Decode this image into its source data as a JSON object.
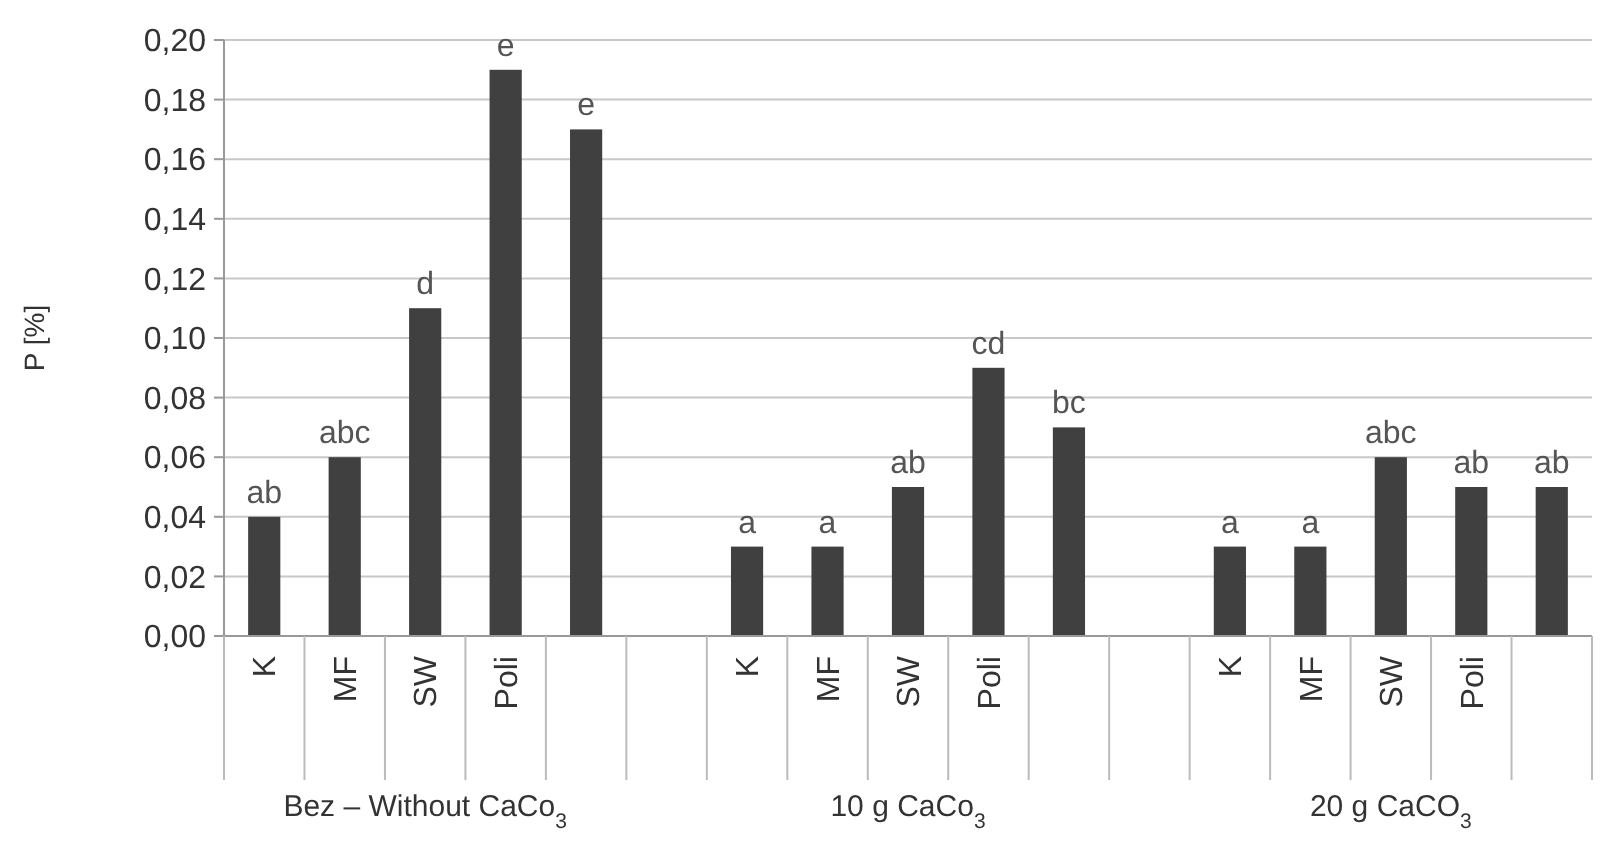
{
  "chart_data": {
    "type": "bar",
    "ylabel": "P [%]",
    "categories": [
      "K",
      "MF",
      "SW",
      "Poli",
      null,
      null,
      "K",
      "MF",
      "SW",
      "Poli",
      null,
      null,
      "K",
      "MF",
      "SW",
      "Poli",
      null
    ],
    "values": [
      0.04,
      0.06,
      0.11,
      0.19,
      0.17,
      null,
      0.03,
      0.03,
      0.05,
      0.09,
      0.07,
      null,
      0.03,
      0.03,
      0.06,
      0.05,
      0.05
    ],
    "value_labels": [
      "ab",
      "abc",
      "d",
      "e",
      "e",
      null,
      "a",
      "a",
      "ab",
      "cd",
      "bc",
      null,
      "a",
      "a",
      "abc",
      "ab",
      "ab"
    ],
    "color": "#404040",
    "ylim": [
      0,
      0.2
    ],
    "yticks": [
      {
        "value": 0,
        "label": "0,00"
      },
      {
        "value": 0.02,
        "label": "0,02"
      },
      {
        "value": 0.04,
        "label": "0,04"
      },
      {
        "value": 0.06,
        "label": "0,06"
      },
      {
        "value": 0.08,
        "label": "0,08"
      },
      {
        "value": 0.1,
        "label": "0,10"
      },
      {
        "value": 0.12,
        "label": "0,12"
      },
      {
        "value": 0.14,
        "label": "0,14"
      },
      {
        "value": 0.16,
        "label": "0,16"
      },
      {
        "value": 0.18,
        "label": "0,18"
      },
      {
        "value": 0.2,
        "label": "0,20"
      }
    ],
    "grid": "y",
    "annotations": [
      "Bez – Without CaCo$_{3}$",
      "10 g CaCo$_{3}$",
      "20 g CaCO$_{3}$"
    ]
  }
}
